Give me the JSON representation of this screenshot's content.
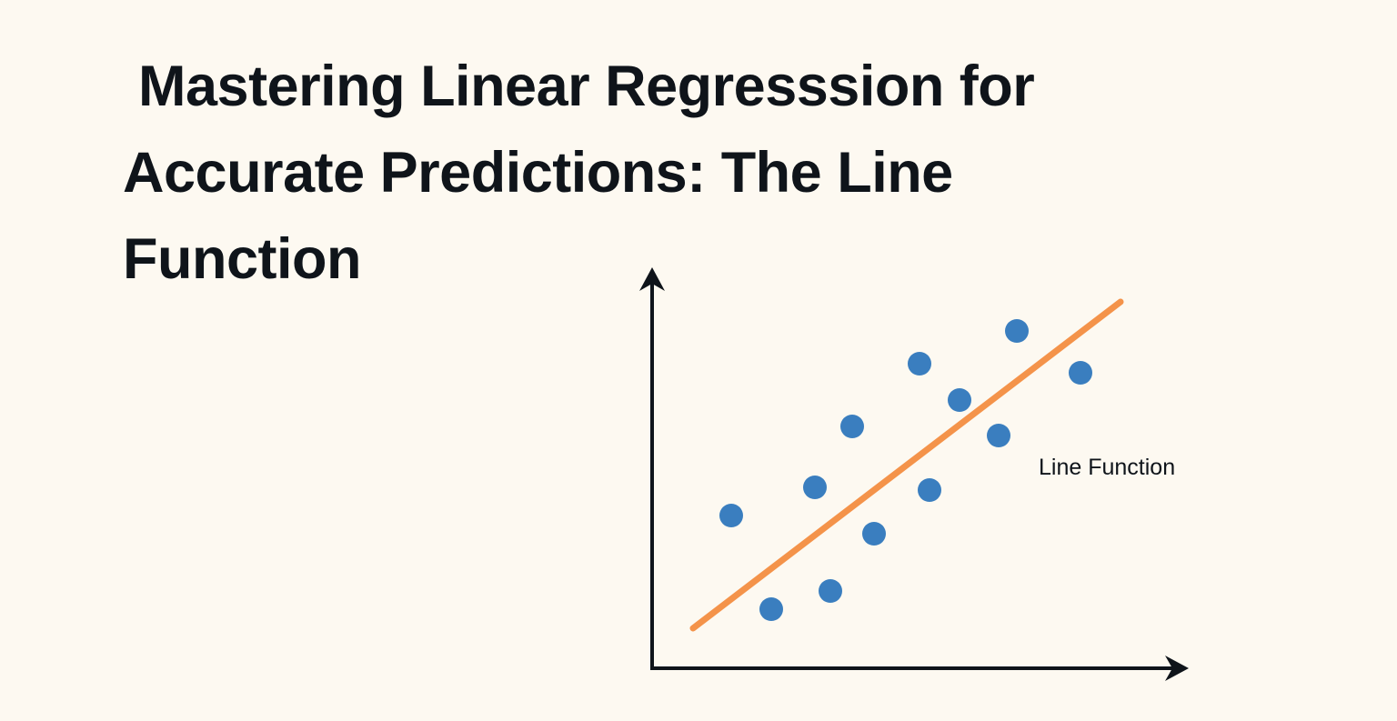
{
  "header": {
    "title": " Mastering Linear Regresssion for Accurate Predictions: The Line Function"
  },
  "figure": {
    "label": "Line Function"
  }
}
